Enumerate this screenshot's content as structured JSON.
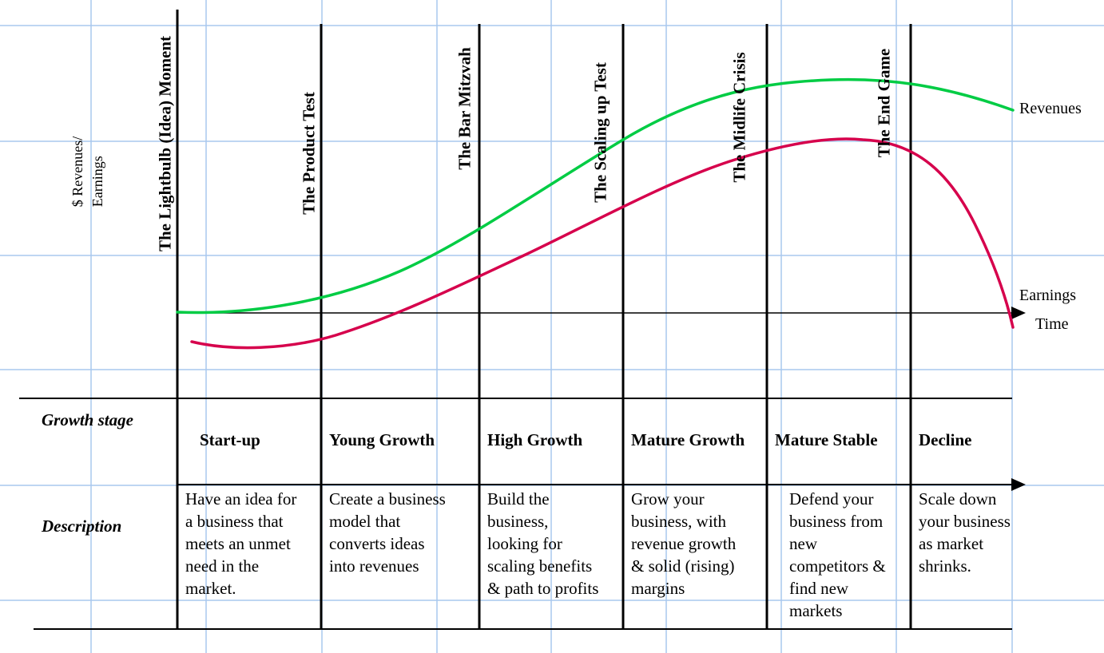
{
  "y_axis_label": {
    "line1": "$ Revenues/",
    "line2": "Earnings"
  },
  "milestones": [
    "The Lightbulb (Idea) Moment",
    "The Product Test",
    "The Bar Mitzvah",
    "The Scaling up Test",
    "The Midlife Crisis",
    "The End Game"
  ],
  "series": {
    "revenues": "Revenues",
    "earnings": "Earnings"
  },
  "x_axis_label": "Time",
  "row_headers": {
    "growth_stage": "Growth stage",
    "description": "Description"
  },
  "stages": [
    {
      "name": "Start-up",
      "description": "Have an idea for\na business that\nmeets an unmet\nneed in the\nmarket."
    },
    {
      "name": "Young Growth",
      "description": "Create a business\nmodel that\nconverts ideas\ninto revenues"
    },
    {
      "name": "High Growth",
      "description": "Build the\nbusiness,\nlooking for\nscaling benefits\n& path to profits"
    },
    {
      "name": "Mature Growth",
      "description": "Grow your\nbusiness, with\nrevenue growth\n& solid (rising)\nmargins"
    },
    {
      "name": "Mature Stable",
      "description": "Defend your\nbusiness from\nnew\ncompetitors &\nfind new\nmarkets"
    },
    {
      "name": "Decline",
      "description": "Scale down\nyour business\nas market\nshrinks."
    }
  ],
  "colors": {
    "revenues": "#00cc44",
    "earnings": "#d6004c",
    "grid": "#a9c8ee"
  }
}
